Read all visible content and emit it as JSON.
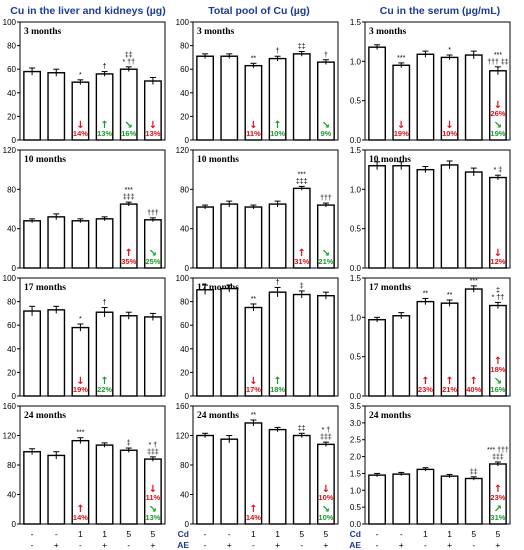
{
  "chart_data": [
    {
      "type": "bar",
      "column": 0,
      "row": 0,
      "title": "Cu in the liver and kidneys (µg)",
      "panel_label": "3 months",
      "ylim": [
        0,
        100
      ],
      "yticks": [
        0,
        20,
        40,
        60,
        80,
        100
      ],
      "values": [
        58,
        57,
        49,
        56,
        60,
        50
      ],
      "errors": [
        3,
        3,
        2,
        2,
        2,
        3
      ],
      "sig": [
        "",
        "",
        "*",
        "†",
        "‡‡|* ††",
        ""
      ],
      "ann": [
        {
          "bar": 2,
          "dir": "down",
          "pct": "14%",
          "color": "red"
        },
        {
          "bar": 3,
          "dir": "up",
          "pct": "13%",
          "color": "green"
        },
        {
          "bar": 4,
          "dir": "diag-down",
          "pct": "16%",
          "color": "green"
        },
        {
          "bar": 5,
          "dir": "down",
          "pct": "13%",
          "color": "red"
        }
      ]
    },
    {
      "type": "bar",
      "column": 0,
      "row": 1,
      "panel_label": "10 months",
      "ylim": [
        0,
        120
      ],
      "yticks": [
        0,
        40,
        80,
        120
      ],
      "values": [
        48,
        52,
        48,
        50,
        65,
        49
      ],
      "errors": [
        2,
        3,
        2,
        2,
        2,
        2
      ],
      "sig": [
        "",
        "",
        "",
        "",
        "***|‡‡‡",
        "†††"
      ],
      "ann": [
        {
          "bar": 4,
          "dir": "up",
          "pct": "35%",
          "color": "red"
        },
        {
          "bar": 5,
          "dir": "diag-down",
          "pct": "25%",
          "color": "green"
        }
      ]
    },
    {
      "type": "bar",
      "column": 0,
      "row": 2,
      "panel_label": "17 months",
      "ylim": [
        0,
        100
      ],
      "yticks": [
        0,
        20,
        40,
        60,
        80,
        100
      ],
      "values": [
        72,
        73,
        58,
        71,
        68,
        67
      ],
      "errors": [
        4,
        3,
        3,
        4,
        3,
        3
      ],
      "sig": [
        "",
        "",
        "*",
        "†",
        "",
        ""
      ],
      "ann": [
        {
          "bar": 2,
          "dir": "down",
          "pct": "19%",
          "color": "red"
        },
        {
          "bar": 3,
          "dir": "up",
          "pct": "22%",
          "color": "green"
        }
      ]
    },
    {
      "type": "bar",
      "column": 0,
      "row": 3,
      "panel_label": "24 months",
      "ylim": [
        0,
        160
      ],
      "yticks": [
        0,
        40,
        80,
        120,
        160
      ],
      "values": [
        98,
        93,
        113,
        107,
        100,
        88
      ],
      "errors": [
        4,
        5,
        4,
        3,
        3,
        3
      ],
      "sig": [
        "",
        "",
        "***",
        "",
        "‡",
        "* †|‡‡‡"
      ],
      "ann": [
        {
          "bar": 2,
          "dir": "up",
          "pct": "14%",
          "color": "red"
        },
        {
          "bar": 5,
          "dir": "diag-down",
          "pct": "13%",
          "color": "green"
        },
        {
          "bar": 5,
          "dir": "down",
          "pct": "11%",
          "color": "red"
        }
      ]
    },
    {
      "type": "bar",
      "column": 1,
      "row": 0,
      "title": "Total pool of Cu (µg)",
      "panel_label": "3 months",
      "ylim": [
        0,
        100
      ],
      "yticks": [
        0,
        20,
        40,
        60,
        80,
        100
      ],
      "values": [
        71,
        71,
        63,
        69,
        73,
        66
      ],
      "errors": [
        2,
        2,
        2,
        2,
        2,
        2
      ],
      "sig": [
        "",
        "",
        "**",
        "†",
        "‡‡",
        "†"
      ],
      "ann": [
        {
          "bar": 2,
          "dir": "down",
          "pct": "11%",
          "color": "red"
        },
        {
          "bar": 3,
          "dir": "up",
          "pct": "10%",
          "color": "green"
        },
        {
          "bar": 5,
          "dir": "diag-down",
          "pct": "9%",
          "color": "green"
        }
      ]
    },
    {
      "type": "bar",
      "column": 1,
      "row": 1,
      "panel_label": "10 months",
      "ylim": [
        0,
        120
      ],
      "yticks": [
        0,
        40,
        80,
        120
      ],
      "values": [
        62,
        65,
        62,
        65,
        81,
        64
      ],
      "errors": [
        2,
        3,
        2,
        3,
        2,
        2
      ],
      "sig": [
        "",
        "",
        "",
        "",
        "***|‡‡‡",
        "†††"
      ],
      "ann": [
        {
          "bar": 4,
          "dir": "up",
          "pct": "31%",
          "color": "red"
        },
        {
          "bar": 5,
          "dir": "diag-down",
          "pct": "21%",
          "color": "green"
        }
      ]
    },
    {
      "type": "bar",
      "column": 1,
      "row": 2,
      "panel_label": "17 months",
      "ylim": [
        0,
        100
      ],
      "yticks": [
        0,
        20,
        40,
        60,
        80,
        100
      ],
      "values": [
        90,
        91,
        75,
        88,
        86,
        85
      ],
      "errors": [
        4,
        3,
        3,
        4,
        3,
        3
      ],
      "sig": [
        "",
        "",
        "**",
        "†",
        "‡",
        ""
      ],
      "ann": [
        {
          "bar": 2,
          "dir": "down",
          "pct": "17%",
          "color": "red"
        },
        {
          "bar": 3,
          "dir": "up",
          "pct": "18%",
          "color": "green"
        }
      ]
    },
    {
      "type": "bar",
      "column": 1,
      "row": 3,
      "panel_label": "24 months",
      "ylim": [
        0,
        160
      ],
      "yticks": [
        0,
        40,
        80,
        120,
        160
      ],
      "values": [
        120,
        115,
        137,
        128,
        120,
        108
      ],
      "errors": [
        3,
        5,
        4,
        3,
        3,
        3
      ],
      "sig": [
        "",
        "",
        "**",
        "",
        "‡‡",
        "* †|‡‡‡"
      ],
      "ann": [
        {
          "bar": 2,
          "dir": "up",
          "pct": "14%",
          "color": "red"
        },
        {
          "bar": 5,
          "dir": "diag-down",
          "pct": "10%",
          "color": "green"
        },
        {
          "bar": 5,
          "dir": "down",
          "pct": "10%",
          "color": "red"
        }
      ]
    },
    {
      "type": "bar",
      "column": 2,
      "row": 0,
      "title": "Cu in the serum (µg/mL)",
      "panel_label": "3 months",
      "ylim": [
        0,
        1.5
      ],
      "yticks": [
        0,
        0.5,
        1.0,
        1.5
      ],
      "yticklabels": [
        "0.0",
        "0.5",
        "1.0",
        "1.5"
      ],
      "values": [
        1.18,
        0.95,
        1.09,
        1.05,
        1.08,
        0.88
      ],
      "errors": [
        0.03,
        0.03,
        0.04,
        0.03,
        0.05,
        0.05
      ],
      "sig": [
        "",
        "***",
        "",
        "*",
        "",
        "***|††† ‡‡"
      ],
      "ann": [
        {
          "bar": 1,
          "dir": "down",
          "pct": "19%",
          "color": "red"
        },
        {
          "bar": 3,
          "dir": "down",
          "pct": "10%",
          "color": "red"
        },
        {
          "bar": 5,
          "dir": "diag-down",
          "pct": "19%",
          "color": "green"
        },
        {
          "bar": 5,
          "dir": "down",
          "pct": "26%",
          "color": "red"
        }
      ]
    },
    {
      "type": "bar",
      "column": 2,
      "row": 1,
      "panel_label": "10 months",
      "ylim": [
        0,
        1.5
      ],
      "yticks": [
        0,
        0.5,
        1.0,
        1.5
      ],
      "yticklabels": [
        "0.0",
        "0.5",
        "1.0",
        "1.5"
      ],
      "values": [
        1.3,
        1.3,
        1.25,
        1.31,
        1.22,
        1.15
      ],
      "errors": [
        0.05,
        0.05,
        0.04,
        0.05,
        0.05,
        0.03
      ],
      "sig": [
        "",
        "",
        "",
        "",
        "",
        "* ‡"
      ],
      "ann": [
        {
          "bar": 5,
          "dir": "down",
          "pct": "12%",
          "color": "red"
        }
      ]
    },
    {
      "type": "bar",
      "column": 2,
      "row": 2,
      "panel_label": "17 months",
      "ylim": [
        0,
        1.5
      ],
      "yticks": [
        0,
        0.5,
        1.0,
        1.5
      ],
      "yticklabels": [
        "0.0",
        "0.5",
        "1.0",
        "1.5"
      ],
      "values": [
        0.97,
        1.02,
        1.2,
        1.18,
        1.36,
        1.15
      ],
      "errors": [
        0.03,
        0.04,
        0.04,
        0.04,
        0.04,
        0.04
      ],
      "sig": [
        "",
        "",
        "**",
        "**",
        "***",
        "‡|* ††"
      ],
      "ann": [
        {
          "bar": 2,
          "dir": "up",
          "pct": "23%",
          "color": "red"
        },
        {
          "bar": 3,
          "dir": "up",
          "pct": "21%",
          "color": "red"
        },
        {
          "bar": 4,
          "dir": "up",
          "pct": "40%",
          "color": "red"
        },
        {
          "bar": 5,
          "dir": "diag-down",
          "pct": "16%",
          "color": "green"
        },
        {
          "bar": 5,
          "dir": "up",
          "pct": "18%",
          "color": "red"
        }
      ]
    },
    {
      "type": "bar",
      "column": 2,
      "row": 3,
      "panel_label": "24 months",
      "ylim": [
        0,
        3.5
      ],
      "yticks": [
        0,
        0.5,
        1.0,
        1.5,
        2.0,
        2.5,
        3.0,
        3.5
      ],
      "yticklabels": [
        "0.0",
        "0.5",
        "1.0",
        "1.5",
        "2.0",
        "2.5",
        "3.0",
        "3.5"
      ],
      "values": [
        1.45,
        1.48,
        1.62,
        1.42,
        1.35,
        1.78
      ],
      "errors": [
        0.05,
        0.05,
        0.05,
        0.05,
        0.05,
        0.06
      ],
      "sig": [
        "",
        "",
        "",
        "",
        "‡‡",
        "*** †††|‡‡‡"
      ],
      "ann": [
        {
          "bar": 5,
          "dir": "diag-up",
          "pct": "31%",
          "color": "green"
        },
        {
          "bar": 5,
          "dir": "up",
          "pct": "23%",
          "color": "red"
        }
      ]
    }
  ],
  "x_axis": {
    "rows": [
      {
        "name": "Cd",
        "values": [
          "-",
          "-",
          "1",
          "1",
          "5",
          "5"
        ]
      },
      {
        "name": "AE",
        "values": [
          "-",
          "+",
          "-",
          "+",
          "-",
          "+"
        ]
      }
    ]
  },
  "colors": {
    "bar": "#ffffff",
    "stroke": "#000000",
    "title": "#1f3a93",
    "increase": "#e0101a",
    "decrease": "#1a9a2a"
  },
  "arrows": {
    "down": "↓",
    "up": "↑",
    "diag-down": "↘",
    "diag-up": "↗"
  }
}
